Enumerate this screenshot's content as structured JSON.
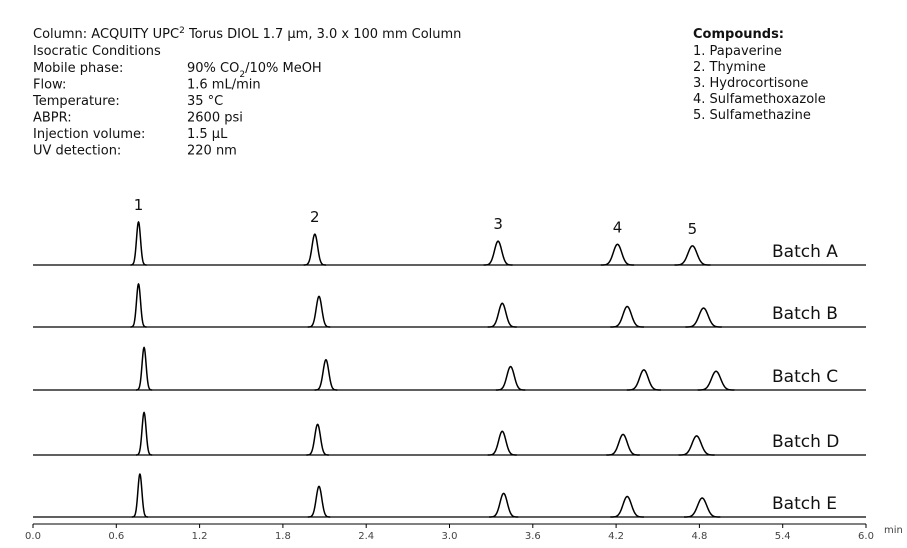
{
  "chart_data": {
    "type": "chromatogram",
    "column": [
      "Column: ACQUITY UPC",
      "2",
      " Torus DIOL 1.7 µm, 3.0 x 100 mm Column"
    ],
    "conditions_title": "Isocratic Conditions",
    "conditions": [
      {
        "label": "Mobile phase:",
        "value": [
          "90% CO",
          "2",
          "/10% MeOH"
        ]
      },
      {
        "label": "Flow:",
        "value": [
          "1.6 mL/min"
        ]
      },
      {
        "label": "Temperature:",
        "value": [
          "35 °C"
        ]
      },
      {
        "label": "ABPR:",
        "value": [
          "2600 psi"
        ]
      },
      {
        "label": "Injection volume:",
        "value": [
          "1.5 µL"
        ]
      },
      {
        "label": "UV detection:",
        "value": [
          "220 nm"
        ]
      }
    ],
    "compounds_title": "Compounds:",
    "compounds": [
      "1. Papaverine",
      "2. Thymine",
      "3. Hydrocortisone",
      "4. Sulfamethoxazole",
      "5. Sulfamethazine"
    ],
    "peak_labels": [
      "1",
      "2",
      "3",
      "4",
      "5"
    ],
    "x_label": "min",
    "xlim": [
      0,
      6
    ],
    "xticks": [
      {
        "value": 0,
        "label": "0.0"
      },
      0.6,
      1.2,
      1.8,
      2.4,
      {
        "value": 3,
        "label": "3.0"
      },
      3.6,
      4.2,
      4.8,
      5.4,
      {
        "value": 6,
        "label": "6.0"
      }
    ],
    "series": [
      {
        "name": "Batch A",
        "color": "#000000",
        "values": [
          0.76,
          2.03,
          3.35,
          4.21,
          4.75
        ]
      },
      {
        "name": "Batch B",
        "color": "#000000",
        "values": [
          0.76,
          2.06,
          3.38,
          4.28,
          4.83
        ]
      },
      {
        "name": "Batch C",
        "color": "#000000",
        "values": [
          0.8,
          2.11,
          3.44,
          4.4,
          4.92
        ]
      },
      {
        "name": "Batch D",
        "color": "#000000",
        "values": [
          0.8,
          2.05,
          3.38,
          4.25,
          4.78
        ]
      },
      {
        "name": "Batch E",
        "color": "#000000",
        "values": [
          0.77,
          2.06,
          3.39,
          4.28,
          4.82
        ]
      }
    ]
  }
}
